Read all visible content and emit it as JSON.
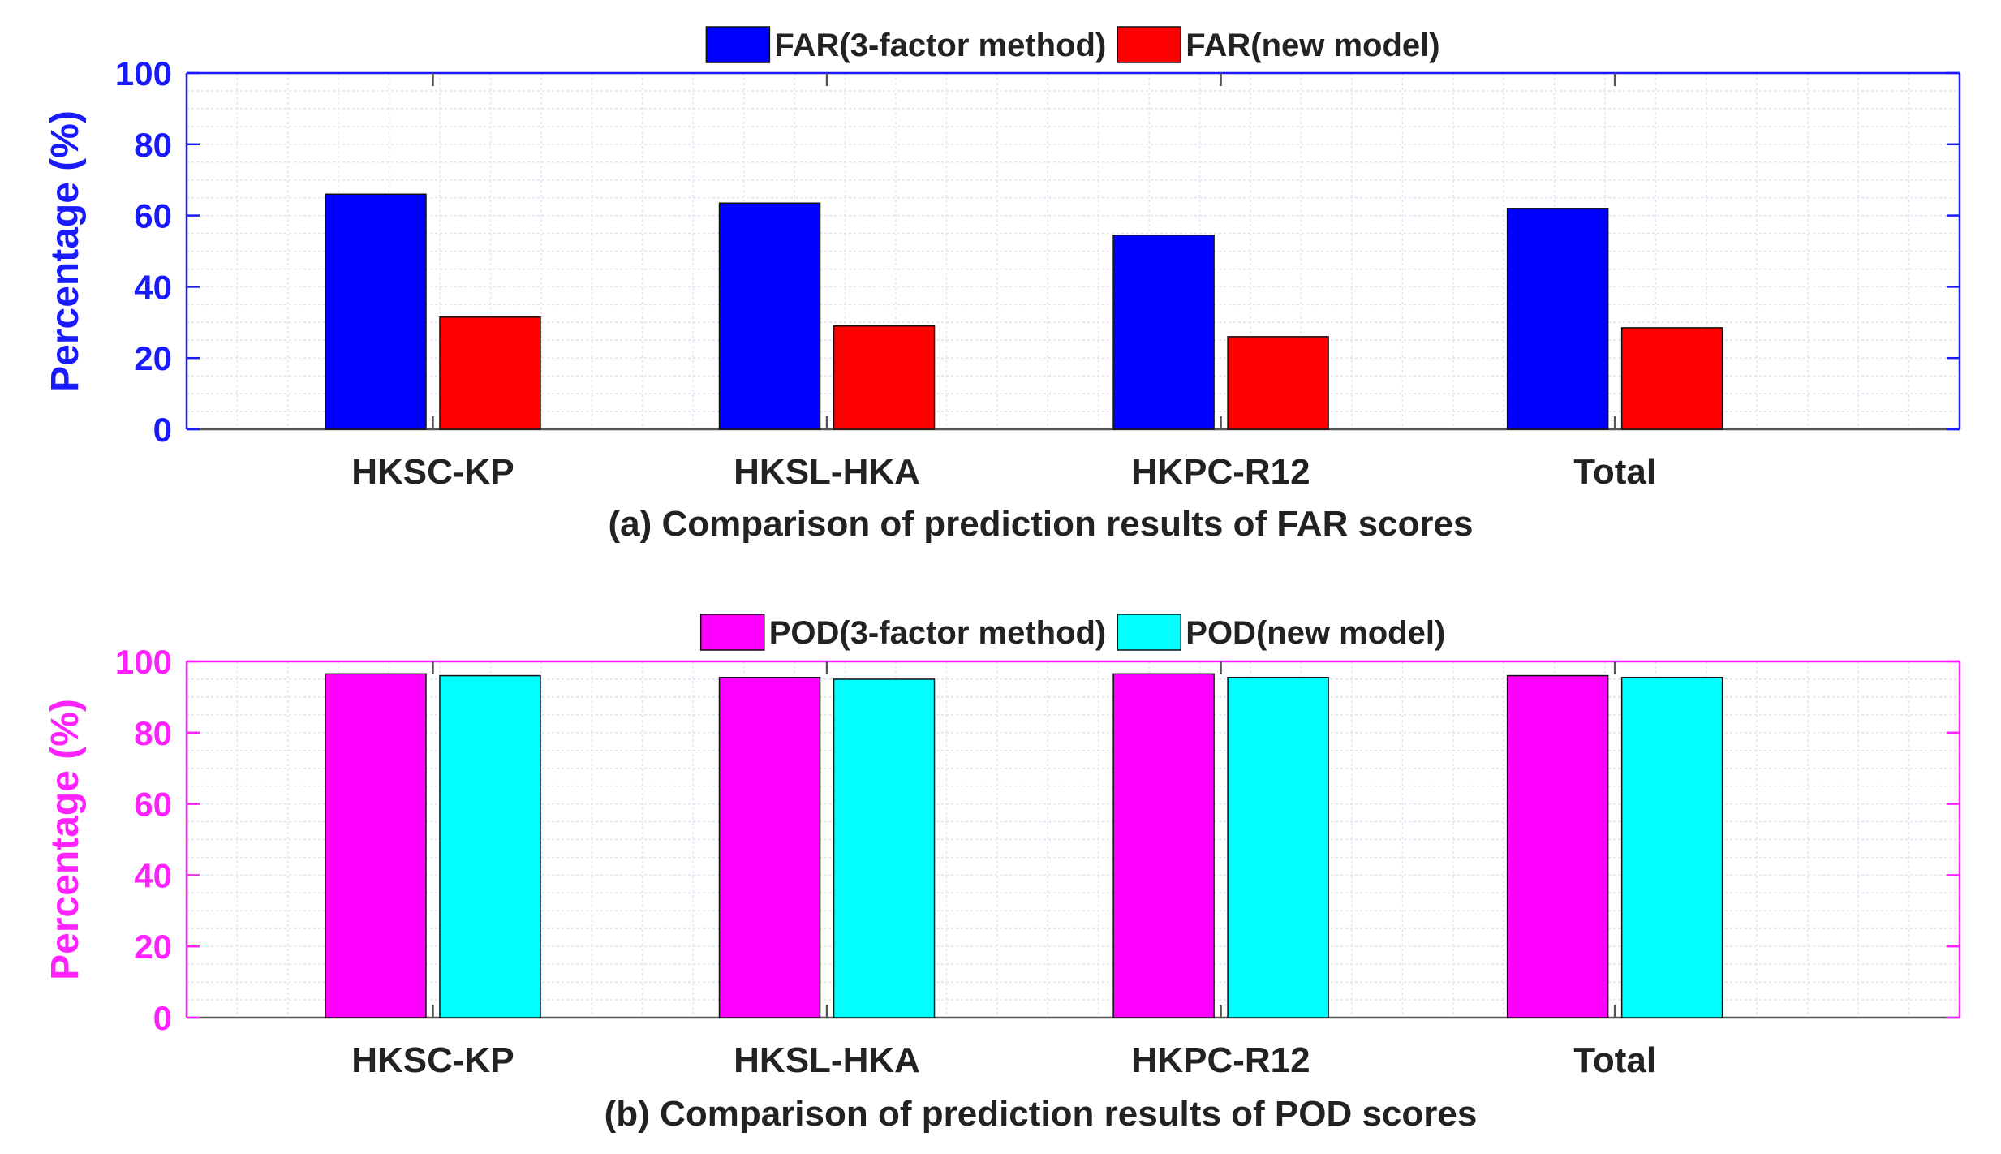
{
  "chart_data": [
    {
      "type": "bar",
      "title": "",
      "caption": "(a) Comparison of prediction results of FAR scores",
      "xlabel": "",
      "ylabel": "Percentage (%)",
      "ylim": [
        0,
        100
      ],
      "yticks": [
        0,
        20,
        40,
        60,
        80,
        100
      ],
      "grid": true,
      "legend_position": "top-center",
      "axis_color": "#1a1aff",
      "categories": [
        "HKSC-KP",
        "HKSL-HKA",
        "HKPC-R12",
        "Total"
      ],
      "series": [
        {
          "name": "FAR(3-factor method)",
          "color": "#0000ff",
          "values": [
            66,
            63.5,
            54.5,
            62
          ]
        },
        {
          "name": "FAR(new model)",
          "color": "#ff0000",
          "values": [
            31.5,
            29,
            26,
            28.5
          ]
        }
      ]
    },
    {
      "type": "bar",
      "title": "",
      "caption": "(b) Comparison of prediction results of POD scores",
      "xlabel": "",
      "ylabel": "Percentage (%)",
      "ylim": [
        0,
        100
      ],
      "yticks": [
        0,
        20,
        40,
        60,
        80,
        100
      ],
      "grid": true,
      "legend_position": "top-center",
      "axis_color": "#ff22ff",
      "categories": [
        "HKSC-KP",
        "HKSL-HKA",
        "HKPC-R12",
        "Total"
      ],
      "series": [
        {
          "name": "POD(3-factor method)",
          "color": "#ff00ff",
          "values": [
            96.5,
            95.5,
            96.5,
            96
          ]
        },
        {
          "name": "POD(new model)",
          "color": "#00ffff",
          "values": [
            96,
            95,
            95.5,
            95.5
          ]
        }
      ]
    }
  ]
}
